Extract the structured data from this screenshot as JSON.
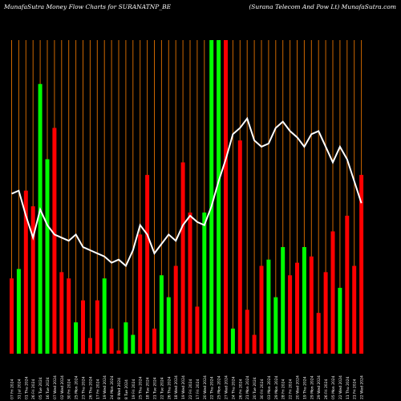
{
  "header": {
    "left": "MunafaSutra  Money Flow  Charts for SURANATNP_BE",
    "right": "(Surana Telecom And Pow Lt) MunafaSutra.com"
  },
  "colors": {
    "up": "#00ff00",
    "down": "#ff0000",
    "grid": "#cc6600",
    "line": "#ffffff",
    "bg": "#000000"
  },
  "chart_data": {
    "type": "bar",
    "ylim": [
      0,
      100
    ],
    "grid": "vertical",
    "categories": [
      "07 Fri 2024",
      "31 Jul 2024",
      "01 Thu 2024",
      "26 Fri 2024",
      "05 Tue 2024",
      "16 Tue 2024",
      "07 Wed 2024",
      "02 Wed 2024",
      "30 Fri 2024",
      "25 Mon 2024",
      "23 Thu 2024",
      "26 Thu 2024",
      "17 Fri 2024",
      "19 Wed 2024",
      "24 Mon 2024",
      "8 Wed 2024",
      "8 Tue 2024",
      "19 Fri 2024",
      "25 Thu 2024",
      "18 Tue 2024",
      "21 Tue 2024",
      "22 Tue 2024",
      "26 Thu 2024",
      "18 Wed 2024",
      "19 Wed 2024",
      "22 Fri 2024",
      "17 Fri 2024",
      "20 Wed 2024",
      "22 Thu 2024",
      "25 Mon 2024",
      "27 Wed 2024",
      "24 Thu 2024",
      "26 Fri 2024",
      "21 Mon 2024",
      "20 Tue 2024",
      "30 Fri 2024",
      "03 Mon 2024",
      "29 Mon 2024",
      "28 Fri 2024",
      "22 Fri 2024",
      "20 Wed 2024",
      "19 Thu 2024",
      "29 Mon 2024",
      "29 Wed 2024",
      "26 Fri 2024",
      "05 Mon 2024",
      "22 Wed 2024",
      "11 Thu 2024",
      "21 Fri 2024",
      "22 Wed 2024"
    ],
    "series": [
      {
        "role": "volume",
        "values": [
          24,
          27,
          52,
          47,
          86,
          62,
          72,
          26,
          24,
          10,
          17,
          5,
          17,
          24,
          8,
          1,
          10,
          6,
          38,
          57,
          8,
          25,
          18,
          28,
          61,
          45,
          15,
          45,
          100,
          100,
          100,
          8,
          68,
          14,
          6,
          28,
          30,
          18,
          34,
          25,
          29,
          34,
          31,
          13,
          26,
          39,
          21,
          44,
          28,
          57
        ],
        "direction": [
          "down",
          "up",
          "down",
          "down",
          "up",
          "up",
          "down",
          "down",
          "down",
          "up",
          "down",
          "down",
          "down",
          "up",
          "down",
          "down",
          "up",
          "up",
          "down",
          "down",
          "down",
          "up",
          "up",
          "down",
          "down",
          "down",
          "down",
          "up",
          "up",
          "up",
          "down",
          "up",
          "down",
          "down",
          "down",
          "down",
          "up",
          "up",
          "up",
          "down",
          "down",
          "up",
          "down",
          "down",
          "down",
          "down",
          "up",
          "down",
          "down",
          "down"
        ]
      },
      {
        "role": "line",
        "values": [
          51,
          52,
          44,
          37,
          46,
          41,
          38,
          37,
          36,
          38,
          34,
          33,
          32,
          31,
          29,
          30,
          28,
          33,
          41,
          38,
          32,
          35,
          38,
          36,
          41,
          44,
          42,
          41,
          47,
          55,
          62,
          70,
          72,
          75,
          68,
          66,
          67,
          72,
          74,
          71,
          69,
          66,
          70,
          71,
          66,
          61,
          66,
          62,
          55,
          48
        ]
      }
    ]
  }
}
